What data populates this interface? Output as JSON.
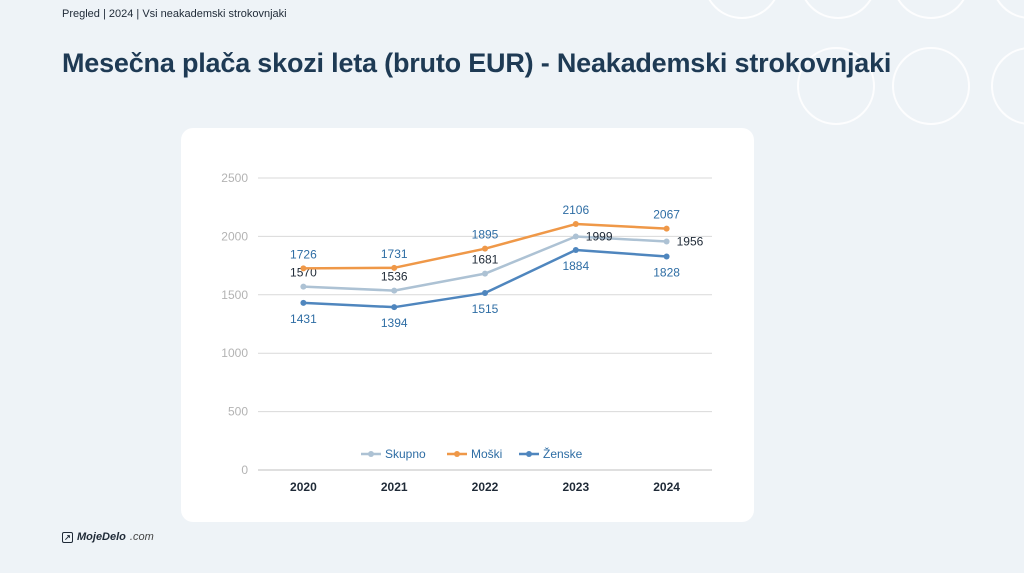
{
  "breadcrumb": "Pregled | 2024 | Vsi neakademski strokovnjaki",
  "page_title": "Mesečna plača skozi leta (bruto EUR) - Neakademski strokovnjaki",
  "logo": {
    "main": "MojeDelo",
    "suffix": ".com",
    "icon": "arrow-out-icon"
  },
  "chart_data": {
    "type": "line",
    "title": "",
    "xlabel": "",
    "ylabel": "",
    "categories": [
      "2020",
      "2021",
      "2022",
      "2023",
      "2024"
    ],
    "ylim": [
      0,
      2500
    ],
    "yticks": [
      "0",
      "500",
      "1000",
      "1500",
      "2000",
      "2500"
    ],
    "grid": true,
    "legend_position": "bottom",
    "series": [
      {
        "name": "Skupno",
        "color": "#adc2d4",
        "label_color": "#1f2a37",
        "values": [
          1570,
          1536,
          1681,
          1999,
          1956
        ]
      },
      {
        "name": "Moški",
        "color": "#ef9848",
        "label_color": "#2e6da4",
        "values": [
          1726,
          1731,
          1895,
          2106,
          2067
        ]
      },
      {
        "name": "Ženske",
        "color": "#4f86be",
        "label_color": "#2e6da4",
        "values": [
          1431,
          1394,
          1515,
          1884,
          1828
        ]
      }
    ]
  }
}
